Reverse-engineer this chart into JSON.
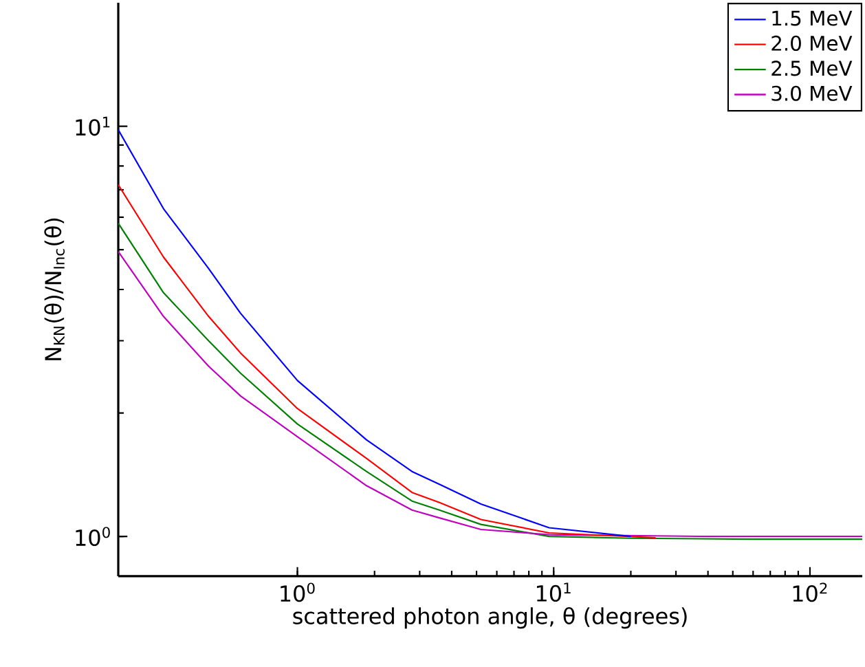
{
  "chart_data": {
    "type": "line",
    "xlabel": "scattered photon angle, θ (degrees)",
    "ylabel": "N$_{KN}$(θ)/N$_{Inc}$(θ)",
    "log": "xy",
    "xlim": [
      0.2,
      160
    ],
    "ylim": [
      0.8,
      20
    ],
    "xticks": [
      {
        "value": 1,
        "label": "10$^{0}$"
      },
      {
        "value": 10,
        "label": "10$^{1}$"
      },
      {
        "value": 100,
        "label": "10$^{2}$"
      }
    ],
    "yticks": [
      {
        "value": 1,
        "label": "10$^{0}$"
      },
      {
        "value": 10,
        "label": "10$^{1}$"
      }
    ],
    "grid": false,
    "legend": "top right",
    "marker": "none",
    "line_style": "solid",
    "series": [
      {
        "name": "1.5 MeV",
        "color": "#0000ff",
        "x": [
          0.2,
          0.3,
          0.45,
          0.6,
          1,
          1.86,
          2.8,
          3.58,
          5.2,
          9.6,
          20
        ],
        "values": [
          9.8,
          6.3,
          4.5,
          3.5,
          2.4,
          1.72,
          1.44,
          1.34,
          1.2,
          1.05,
          1.0
        ]
      },
      {
        "name": "2.0 MeV",
        "color": "#ff0000",
        "x": [
          0.2,
          0.3,
          0.45,
          0.6,
          1,
          1.86,
          2.8,
          3.58,
          5.2,
          9.6,
          25
        ],
        "values": [
          7.2,
          4.8,
          3.44,
          2.8,
          2.05,
          1.55,
          1.28,
          1.21,
          1.1,
          1.02,
          0.993
        ]
      },
      {
        "name": "2.5 MeV",
        "color": "#008000",
        "x": [
          0.2,
          0.3,
          0.45,
          0.6,
          1,
          1.86,
          2.8,
          3.58,
          5.2,
          9.6,
          20,
          60,
          160
        ],
        "values": [
          5.8,
          3.93,
          3.0,
          2.5,
          1.88,
          1.44,
          1.22,
          1.16,
          1.07,
          1.0,
          0.99,
          0.985,
          0.985
        ]
      },
      {
        "name": "3.0 MeV",
        "color": "#c000c0",
        "x": [
          0.2,
          0.3,
          0.45,
          0.6,
          1,
          1.86,
          2.8,
          3.58,
          5.2,
          9.6,
          40,
          100,
          160
        ],
        "values": [
          4.95,
          3.44,
          2.6,
          2.2,
          1.75,
          1.33,
          1.16,
          1.11,
          1.04,
          1.01,
          1.0,
          1.0,
          1.0
        ]
      }
    ]
  }
}
